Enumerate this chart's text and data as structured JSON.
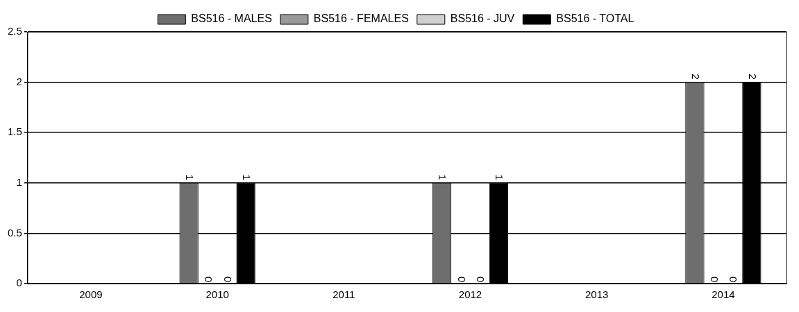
{
  "chart_data": {
    "type": "bar",
    "categories": [
      "2009",
      "2010",
      "2011",
      "2012",
      "2013",
      "2014"
    ],
    "series": [
      {
        "name": "BS516 - MALES",
        "color": "#6e6e6e",
        "values": [
          null,
          1,
          null,
          1,
          null,
          2
        ]
      },
      {
        "name": "BS516 - FEMALES",
        "color": "#9a9a9a",
        "values": [
          null,
          0,
          null,
          0,
          null,
          0
        ]
      },
      {
        "name": "BS516 - JUV",
        "color": "#d0d0d0",
        "values": [
          null,
          0,
          null,
          0,
          null,
          0
        ]
      },
      {
        "name": "BS516 - TOTAL",
        "color": "#000000",
        "values": [
          null,
          1,
          null,
          1,
          null,
          2
        ]
      }
    ],
    "ylim": [
      0,
      2.5
    ],
    "yticks": [
      0,
      0.5,
      1,
      1.5,
      2,
      2.5
    ],
    "grid": "y",
    "legend": "top",
    "data_labels": true
  }
}
